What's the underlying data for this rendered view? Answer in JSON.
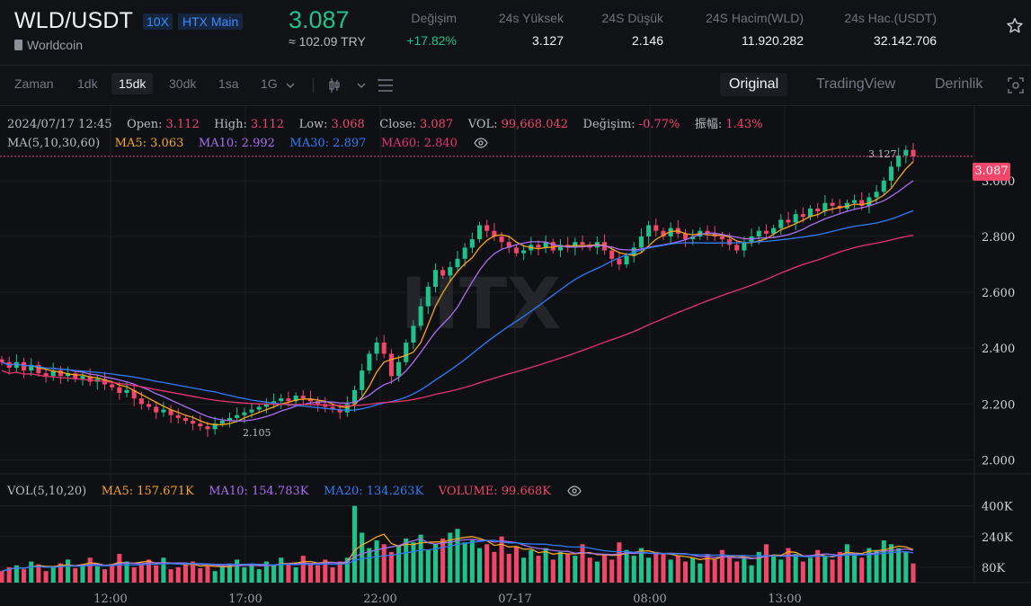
{
  "header": {
    "pair": "WLD/USDT",
    "leverage": "10X",
    "market": "HTX Main",
    "coin_name": "Worldcoin",
    "last_price": "3.087",
    "fiat_price": "≈ 102.09 TRY",
    "stats": [
      {
        "label": "Değişim",
        "value": "+17.82%"
      },
      {
        "label": "24s Yüksek",
        "value": "3.127"
      },
      {
        "label": "24S Düşük",
        "value": "2.146"
      },
      {
        "label": "24S Hacim(WLD)",
        "value": "11.920.282"
      },
      {
        "label": "24s Hac.(USDT)",
        "value": "32.142.706"
      }
    ]
  },
  "toolbar": {
    "intervals": [
      "Zaman",
      "1dk",
      "15dk",
      "30dk",
      "1sa",
      "1G"
    ],
    "active_interval": "15dk",
    "views": [
      "Original",
      "TradingView",
      "Derinlik"
    ],
    "active_view": "Original"
  },
  "ohlc": {
    "date": "2024/07/17 12:45",
    "open_label": "Open:",
    "open": "3.112",
    "high_label": "High:",
    "high": "3.112",
    "low_label": "Low:",
    "low": "3.068",
    "close_label": "Close:",
    "close": "3.087",
    "vol_label": "VOL:",
    "vol": "99,668.042",
    "chg_label": "Değişim:",
    "chg": "-0.77%",
    "amp_label": "振幅:",
    "amp": "1.43%"
  },
  "ma_legend": {
    "title": "MA(5,10,30,60)",
    "ma5": "MA5: 3.063",
    "ma10": "MA10: 2.992",
    "ma30": "MA30: 2.897",
    "ma60": "MA60: 2.840"
  },
  "vol_legend": {
    "title": "VOL(5,10,20)",
    "ma5": "MA5: 157.671K",
    "ma10": "MA10: 154.783K",
    "ma20": "MA20: 134.263K",
    "volume": "VOLUME: 99.668K"
  },
  "colors": {
    "up": "#1fc28a",
    "down": "#f0466a",
    "ma5": "#f5a623",
    "ma10": "#a66ff0",
    "ma30": "#2f7cf6",
    "ma60": "#e5356e",
    "bg": "#0f1014"
  },
  "chart_data": {
    "type": "candlestick",
    "interval": "15dk",
    "price_axis_ticks": [
      "3.000",
      "2.800",
      "2.600",
      "2.400",
      "2.200",
      "2.000"
    ],
    "ylim": [
      1.95,
      3.27
    ],
    "volume_axis_ticks": [
      "400K",
      "240K",
      "80K"
    ],
    "volume_ylim": [
      0,
      520
    ],
    "time_labels": [
      "12:00",
      "17:00",
      "22:00",
      "07-17",
      "08:00",
      "13:00"
    ],
    "current_price": "3.087",
    "high_marker": "3.127",
    "low_marker": "2.105",
    "watermark": "HTX",
    "close_path": [
      2.35,
      2.33,
      2.35,
      2.32,
      2.34,
      2.31,
      2.3,
      2.32,
      2.3,
      2.31,
      2.29,
      2.3,
      2.28,
      2.29,
      2.27,
      2.26,
      2.24,
      2.25,
      2.22,
      2.2,
      2.19,
      2.17,
      2.18,
      2.16,
      2.15,
      2.14,
      2.13,
      2.12,
      2.11,
      2.13,
      2.14,
      2.15,
      2.16,
      2.17,
      2.18,
      2.19,
      2.2,
      2.21,
      2.22,
      2.21,
      2.23,
      2.22,
      2.21,
      2.2,
      2.19,
      2.18,
      2.17,
      2.2,
      2.25,
      2.32,
      2.38,
      2.42,
      2.38,
      2.3,
      2.35,
      2.42,
      2.48,
      2.55,
      2.62,
      2.68,
      2.66,
      2.69,
      2.72,
      2.76,
      2.79,
      2.84,
      2.82,
      2.8,
      2.78,
      2.76,
      2.74,
      2.75,
      2.77,
      2.76,
      2.78,
      2.75,
      2.77,
      2.76,
      2.78,
      2.77,
      2.76,
      2.78,
      2.75,
      2.72,
      2.7,
      2.73,
      2.76,
      2.8,
      2.84,
      2.82,
      2.8,
      2.83,
      2.81,
      2.79,
      2.8,
      2.82,
      2.81,
      2.8,
      2.79,
      2.77,
      2.75,
      2.78,
      2.8,
      2.82,
      2.81,
      2.83,
      2.86,
      2.85,
      2.88,
      2.87,
      2.9,
      2.89,
      2.92,
      2.91,
      2.9,
      2.92,
      2.93,
      2.91,
      2.94,
      2.96,
      3.0,
      3.05,
      3.09,
      3.11,
      3.087
    ],
    "volume_path": [
      60,
      80,
      90,
      70,
      110,
      95,
      60,
      85,
      100,
      120,
      75,
      90,
      130,
      85,
      70,
      95,
      150,
      110,
      80,
      100,
      120,
      90,
      130,
      70,
      80,
      95,
      110,
      75,
      85,
      60,
      90,
      100,
      120,
      80,
      95,
      70,
      110,
      90,
      130,
      100,
      80,
      140,
      100,
      90,
      120,
      80,
      110,
      130,
      400,
      260,
      180,
      220,
      200,
      160,
      190,
      230,
      210,
      250,
      170,
      200,
      230,
      260,
      280,
      210,
      220,
      180,
      200,
      160,
      240,
      150,
      190,
      130,
      170,
      140,
      180,
      120,
      160,
      150,
      140,
      200,
      130,
      110,
      150,
      120,
      210,
      170,
      140,
      180,
      130,
      160,
      150,
      120,
      140,
      110,
      130,
      100,
      150,
      120,
      170,
      140,
      110,
      130,
      90,
      160,
      200,
      140,
      120,
      180,
      150,
      110,
      130,
      170,
      140,
      120,
      160,
      200,
      150,
      130,
      180,
      170,
      220,
      200,
      180,
      160,
      100
    ]
  }
}
